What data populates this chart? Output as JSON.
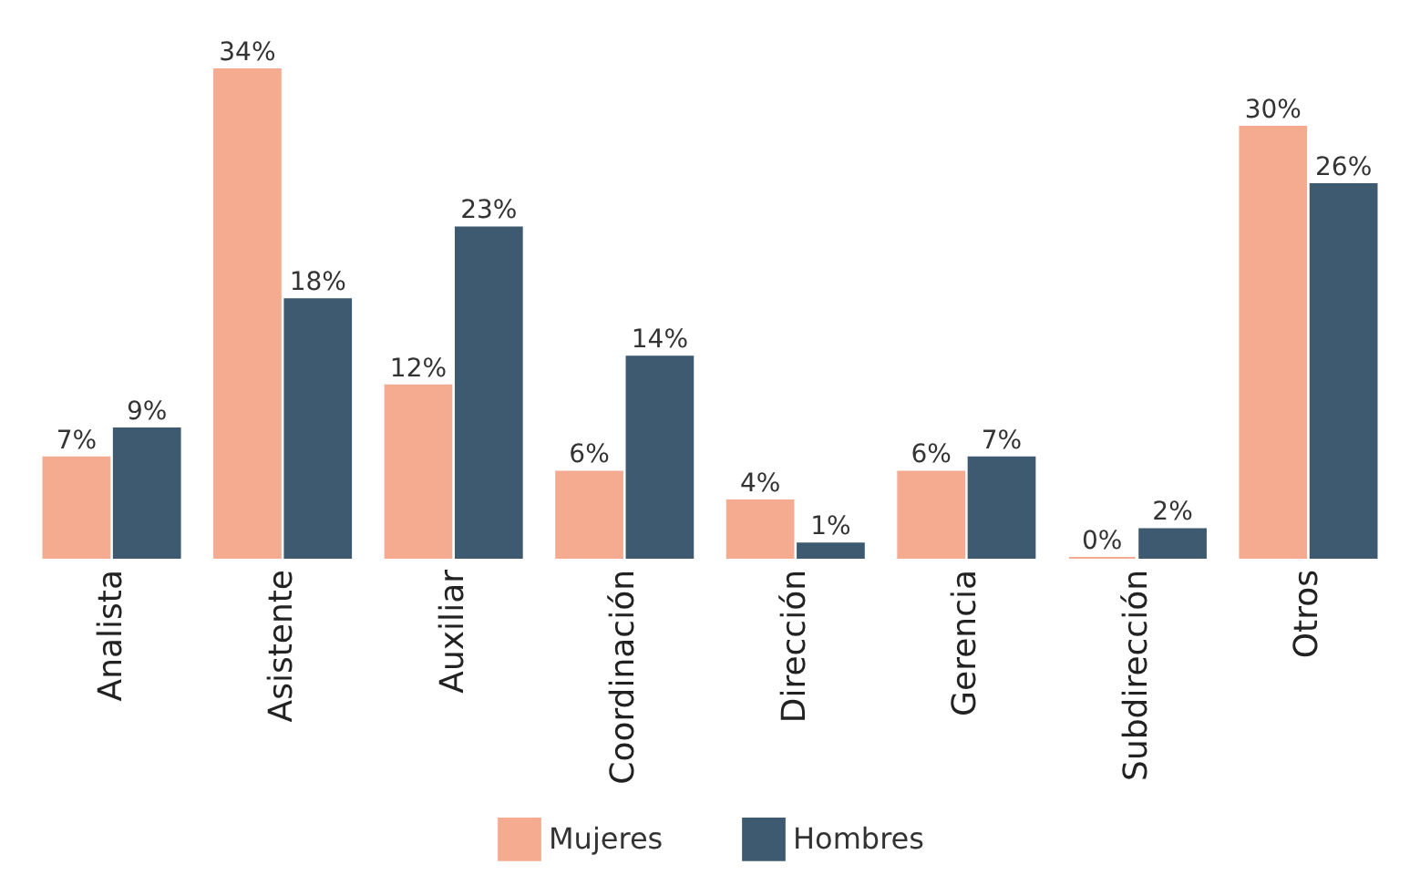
{
  "chart_data": {
    "type": "bar",
    "categories": [
      "Analista",
      "Asistente",
      "Auxiliar",
      "Coordinación",
      "Dirección",
      "Gerencia",
      "Subdirección",
      "Otros"
    ],
    "series": [
      {
        "name": "Mujeres",
        "color": "#f4ab8f",
        "values": [
          7,
          34,
          12,
          6,
          4,
          6,
          0,
          30
        ],
        "value_labels": [
          "7%",
          "34%",
          "12%",
          "6%",
          "4%",
          "6%",
          "0%",
          "30%"
        ]
      },
      {
        "name": "Hombres",
        "color": "#3e5a70",
        "values": [
          9,
          18,
          23,
          14,
          1,
          7,
          2,
          26
        ],
        "value_labels": [
          "9%",
          "18%",
          "23%",
          "14%",
          "1%",
          "7%",
          "2%",
          "26%"
        ]
      }
    ],
    "legend": "bottom",
    "grid": false
  }
}
